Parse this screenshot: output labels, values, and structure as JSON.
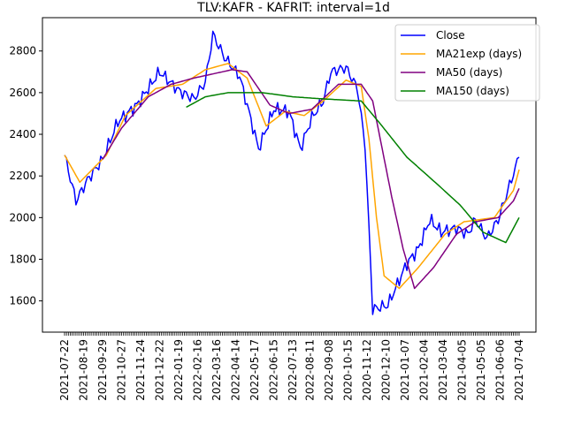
{
  "chart_data": {
    "type": "line",
    "title": "TLV:KAFR - KAFRIT: interval=1d",
    "xlabel": "",
    "ylabel": "",
    "x_tick_labels": [
      "2021-07-22",
      "2021-08-19",
      "2021-09-29",
      "2021-10-27",
      "2021-11-24",
      "2021-12-22",
      "2022-01-19",
      "2022-02-16",
      "2022-03-16",
      "2022-04-14",
      "2022-05-17",
      "2022-06-15",
      "2022-07-13",
      "2022-08-11",
      "2022-09-08",
      "2020-10-15",
      "2020-11-12",
      "2020-12-10",
      "2021-01-07",
      "2021-02-04",
      "2021-03-04",
      "2021-04-05",
      "2021-05-05",
      "2021-06-06",
      "2021-07-04"
    ],
    "y_ticks": [
      1600,
      1800,
      2000,
      2200,
      2400,
      2600,
      2800
    ],
    "ylim": [
      1450,
      2960
    ],
    "n_points": 240,
    "legend_position": "top-right",
    "grid": false,
    "series": [
      {
        "name": "Close",
        "color": "#0000ff",
        "keypoints": [
          [
            0,
            2300
          ],
          [
            6,
            2080
          ],
          [
            12,
            2180
          ],
          [
            20,
            2280
          ],
          [
            28,
            2460
          ],
          [
            38,
            2540
          ],
          [
            50,
            2700
          ],
          [
            60,
            2610
          ],
          [
            68,
            2570
          ],
          [
            74,
            2650
          ],
          [
            78,
            2880
          ],
          [
            84,
            2770
          ],
          [
            92,
            2680
          ],
          [
            102,
            2330
          ],
          [
            110,
            2520
          ],
          [
            118,
            2510
          ],
          [
            124,
            2330
          ],
          [
            130,
            2480
          ],
          [
            136,
            2560
          ],
          [
            140,
            2700
          ],
          [
            148,
            2720
          ],
          [
            154,
            2620
          ],
          [
            158,
            2350
          ],
          [
            162,
            1560
          ],
          [
            170,
            1580
          ],
          [
            180,
            1780
          ],
          [
            186,
            1850
          ],
          [
            192,
            1990
          ],
          [
            198,
            1930
          ],
          [
            206,
            1950
          ],
          [
            212,
            1920
          ],
          [
            216,
            1990
          ],
          [
            222,
            1900
          ],
          [
            228,
            1990
          ],
          [
            236,
            2210
          ],
          [
            239,
            2290
          ]
        ]
      },
      {
        "name": "MA21exp (days)",
        "color": "#ffa500",
        "keypoints": [
          [
            0,
            2300
          ],
          [
            8,
            2170
          ],
          [
            22,
            2300
          ],
          [
            32,
            2490
          ],
          [
            48,
            2620
          ],
          [
            62,
            2640
          ],
          [
            74,
            2710
          ],
          [
            86,
            2740
          ],
          [
            96,
            2670
          ],
          [
            106,
            2440
          ],
          [
            116,
            2510
          ],
          [
            126,
            2490
          ],
          [
            136,
            2560
          ],
          [
            148,
            2660
          ],
          [
            156,
            2630
          ],
          [
            160,
            2380
          ],
          [
            164,
            2000
          ],
          [
            168,
            1720
          ],
          [
            176,
            1660
          ],
          [
            186,
            1760
          ],
          [
            200,
            1920
          ],
          [
            210,
            1980
          ],
          [
            226,
            2000
          ],
          [
            236,
            2130
          ],
          [
            239,
            2230
          ]
        ]
      },
      {
        "name": "MA50 (days)",
        "color": "#800080",
        "keypoints": [
          [
            20,
            2280
          ],
          [
            30,
            2430
          ],
          [
            44,
            2580
          ],
          [
            56,
            2640
          ],
          [
            68,
            2670
          ],
          [
            78,
            2690
          ],
          [
            88,
            2710
          ],
          [
            96,
            2700
          ],
          [
            108,
            2540
          ],
          [
            118,
            2500
          ],
          [
            130,
            2520
          ],
          [
            144,
            2640
          ],
          [
            156,
            2640
          ],
          [
            162,
            2560
          ],
          [
            172,
            2100
          ],
          [
            178,
            1850
          ],
          [
            184,
            1660
          ],
          [
            194,
            1760
          ],
          [
            206,
            1920
          ],
          [
            216,
            1980
          ],
          [
            228,
            2000
          ],
          [
            236,
            2080
          ],
          [
            239,
            2140
          ]
        ]
      },
      {
        "name": "MA150 (days)",
        "color": "#008000",
        "keypoints": [
          [
            64,
            2530
          ],
          [
            74,
            2580
          ],
          [
            86,
            2600
          ],
          [
            104,
            2600
          ],
          [
            120,
            2580
          ],
          [
            136,
            2570
          ],
          [
            156,
            2560
          ],
          [
            166,
            2450
          ],
          [
            180,
            2290
          ],
          [
            196,
            2160
          ],
          [
            208,
            2060
          ],
          [
            220,
            1930
          ],
          [
            232,
            1880
          ],
          [
            239,
            2000
          ]
        ]
      }
    ]
  }
}
